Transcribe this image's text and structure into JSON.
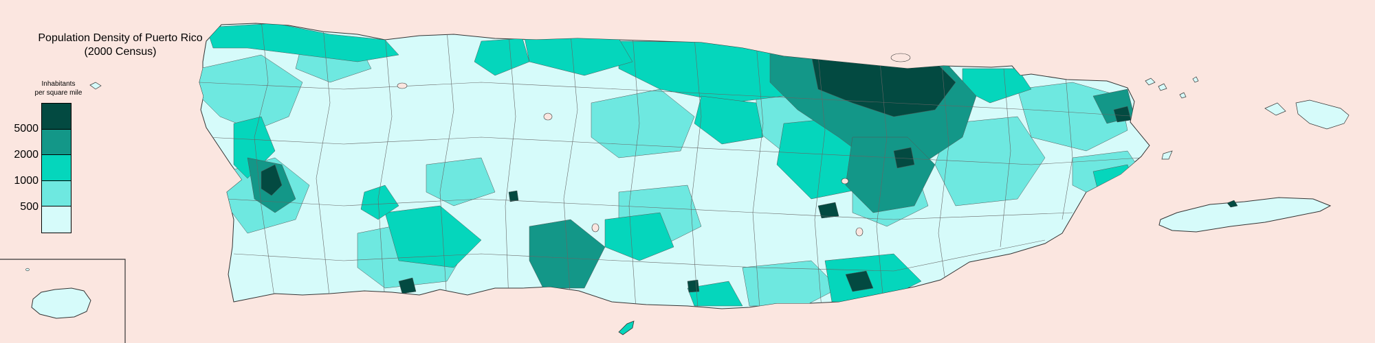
{
  "map": {
    "title_line1": "Population Density of Puerto Rico",
    "title_line2": "(2000 Census)",
    "legend": {
      "heading_line1": "Inhabitants",
      "heading_line2": "per square mile",
      "thresholds": [
        "5000",
        "2000",
        "1000",
        "500"
      ],
      "classes": [
        {
          "range": "> 5000",
          "color": "#034a41"
        },
        {
          "range": "2000 - 5000",
          "color": "#139788"
        },
        {
          "range": "1000 - 2000",
          "color": "#05d6bc"
        },
        {
          "range": "500 - 1000",
          "color": "#6ee8e0"
        },
        {
          "range": "< 500",
          "color": "#d6fbfa"
        }
      ]
    },
    "background_color": "#fbe6e0",
    "border_color": "#333333",
    "regions": [
      {
        "name": "Puerto Rico main island",
        "density_class": "< 500"
      },
      {
        "name": "Vieques",
        "density_class": "< 500"
      },
      {
        "name": "Culebra",
        "density_class": "< 500"
      },
      {
        "name": "Mona Island (inset)",
        "density_class": "< 500"
      },
      {
        "name": "Desecheo Island",
        "density_class": "500 - 1000"
      },
      {
        "name": "Caja de Muerto",
        "density_class": "1000 - 2000"
      }
    ]
  }
}
